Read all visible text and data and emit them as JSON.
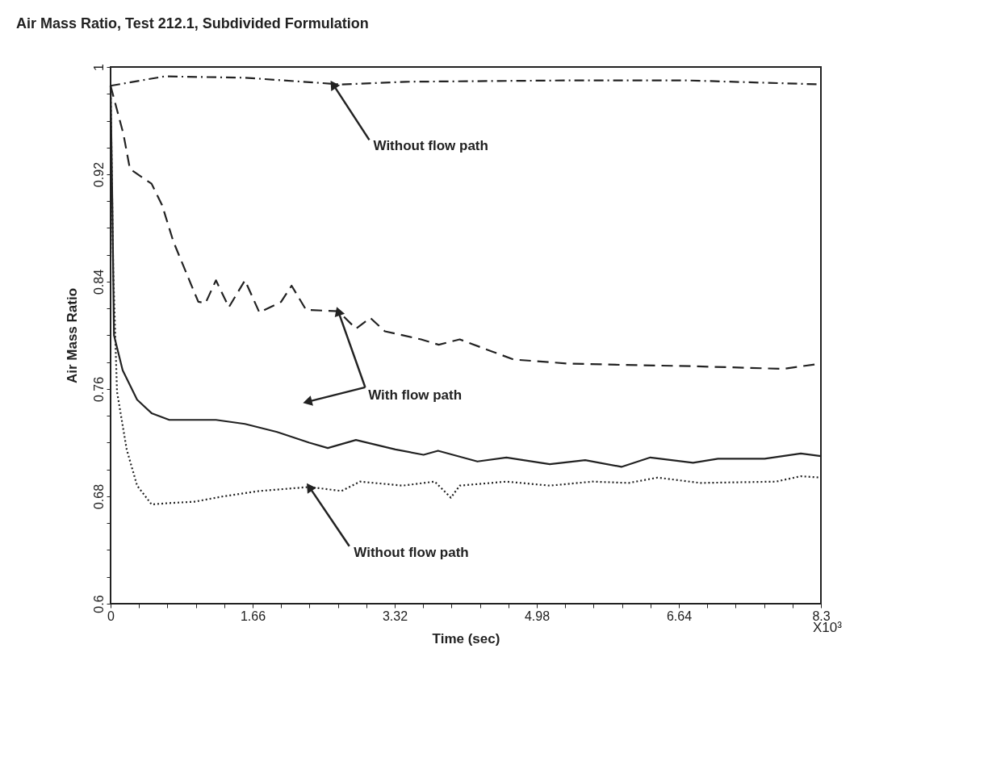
{
  "chart_data": {
    "type": "line",
    "title": "Air Mass Ratio, Test 212.1, Subdivided Formulation",
    "xlabel": "Time (sec)",
    "ylabel": "Air Mass Ratio",
    "xlim": [
      0,
      8.3
    ],
    "ylim": [
      0.6,
      1
    ],
    "xticks": [
      0,
      {
        "value": 0.332,
        "label": null
      },
      {
        "value": 0.664,
        "label": null
      },
      {
        "value": 0.996,
        "label": null
      },
      {
        "value": 1.328,
        "label": null
      },
      1.66,
      {
        "value": 1.992,
        "label": null
      },
      {
        "value": 2.324,
        "label": null
      },
      {
        "value": 2.656,
        "label": null
      },
      {
        "value": 2.988,
        "label": null
      },
      3.32,
      {
        "value": 3.652,
        "label": null
      },
      {
        "value": 3.984,
        "label": null
      },
      {
        "value": 4.316,
        "label": null
      },
      {
        "value": 4.648,
        "label": null
      },
      4.98,
      {
        "value": 5.312,
        "label": null
      },
      {
        "value": 5.644,
        "label": null
      },
      {
        "value": 5.976,
        "label": null
      },
      {
        "value": 6.308,
        "label": null
      },
      6.64,
      {
        "value": 6.972,
        "label": null
      },
      {
        "value": 7.304,
        "label": null
      },
      {
        "value": 7.636,
        "label": null
      },
      {
        "value": 7.968,
        "label": null
      },
      8.3
    ],
    "yticks": [
      0.6,
      {
        "value": 0.62,
        "label": null
      },
      {
        "value": 0.64,
        "label": null
      },
      {
        "value": 0.66,
        "label": null
      },
      0.68,
      {
        "value": 0.7,
        "label": null
      },
      {
        "value": 0.72,
        "label": null
      },
      {
        "value": 0.74,
        "label": null
      },
      0.76,
      {
        "value": 0.78,
        "label": null
      },
      {
        "value": 0.8,
        "label": null
      },
      {
        "value": 0.82,
        "label": null
      },
      0.84,
      {
        "value": 0.86,
        "label": null
      },
      {
        "value": 0.88,
        "label": null
      },
      {
        "value": 0.9,
        "label": null
      },
      0.92,
      {
        "value": 0.94,
        "label": null
      },
      {
        "value": 0.96,
        "label": null
      },
      {
        "value": 0.98,
        "label": null
      },
      1
    ],
    "grid": false,
    "marker": "none",
    "series": [
      {
        "color": "#222222",
        "line_style": "dashdot",
        "x": [
          0,
          0.63,
          1.57,
          2.7,
          3.45,
          5.33,
          6.74,
          8.3
        ],
        "values": [
          0.986,
          0.993,
          0.992,
          0.987,
          0.989,
          0.99,
          0.99,
          0.987
        ]
      },
      {
        "color": "#222222",
        "line_style": "dashed",
        "x": [
          0,
          0.15,
          0.226,
          0.479,
          0.602,
          0.733,
          0.94,
          1.025,
          1.109,
          1.231,
          1.382,
          1.57,
          1.739,
          1.993,
          2.115,
          2.284,
          2.66,
          2.867,
          3.036,
          3.205,
          3.628,
          3.835,
          4.08,
          4.456,
          4.709,
          5.339,
          5.969,
          6.806,
          7.858,
          8.3
        ],
        "values": [
          0.986,
          0.95,
          0.924,
          0.913,
          0.897,
          0.87,
          0.838,
          0.825,
          0.824,
          0.841,
          0.821,
          0.841,
          0.817,
          0.825,
          0.837,
          0.819,
          0.818,
          0.805,
          0.813,
          0.803,
          0.797,
          0.793,
          0.797,
          0.788,
          0.782,
          0.779,
          0.778,
          0.777,
          0.775,
          0.779
        ]
      },
      {
        "color": "#222222",
        "line_style": "solid",
        "x": [
          0,
          0.02,
          0.04,
          0.141,
          0.31,
          0.479,
          0.686,
          1.231,
          1.57,
          1.946,
          2.322,
          2.538,
          2.867,
          3.328,
          3.657,
          3.826,
          4.286,
          4.625,
          5.132,
          5.546,
          5.969,
          6.307,
          6.806,
          7.097,
          7.642,
          8.065,
          8.3
        ],
        "values": [
          0.986,
          0.9,
          0.8,
          0.774,
          0.752,
          0.742,
          0.737,
          0.737,
          0.734,
          0.728,
          0.72,
          0.716,
          0.722,
          0.715,
          0.711,
          0.714,
          0.706,
          0.709,
          0.704,
          0.707,
          0.702,
          0.709,
          0.705,
          0.708,
          0.708,
          0.712,
          0.71
        ]
      },
      {
        "color": "#222222",
        "line_style": "dotted",
        "x": [
          0,
          0.03,
          0.075,
          0.188,
          0.31,
          0.479,
          0.686,
          0.978,
          1.316,
          1.739,
          2.322,
          2.698,
          2.914,
          3.412,
          3.788,
          3.976,
          4.08,
          4.625,
          5.132,
          5.631,
          6.054,
          6.392,
          6.891,
          7.775,
          8.065,
          8.3
        ],
        "values": [
          0.986,
          0.85,
          0.758,
          0.715,
          0.688,
          0.674,
          0.675,
          0.676,
          0.68,
          0.684,
          0.687,
          0.684,
          0.691,
          0.688,
          0.691,
          0.679,
          0.688,
          0.691,
          0.688,
          0.691,
          0.69,
          0.694,
          0.69,
          0.691,
          0.695,
          0.694
        ]
      }
    ],
    "annotations": [
      {
        "text": "Without flow path",
        "x": 2.6,
        "y": 0.987
      },
      {
        "text": "With flow path",
        "x": 2.66,
        "y": 0.818
      },
      {
        "text": "Without flow path",
        "x": 2.322,
        "y": 0.687
      },
      "X10³"
    ]
  }
}
